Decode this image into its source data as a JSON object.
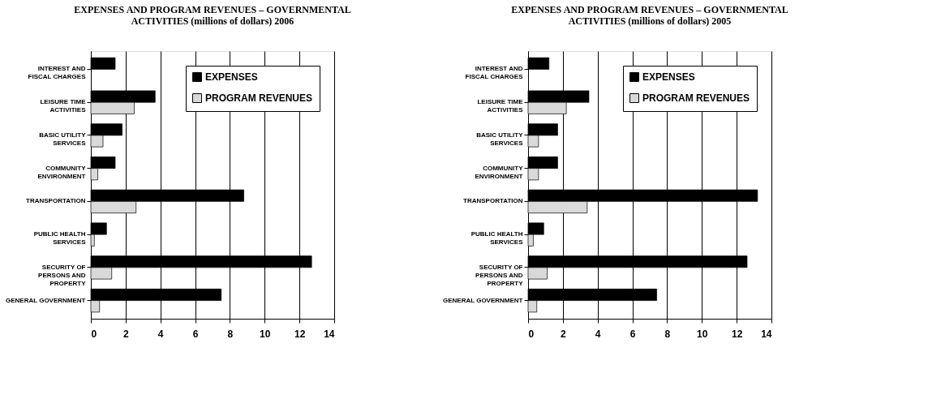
{
  "chart_data": [
    {
      "type": "bar",
      "orientation": "horizontal",
      "title": "EXPENSES AND PROGRAM REVENUES – GOVERNMENTAL ACTIVITIES (millions of dollars) 2006",
      "categories": [
        "INTEREST AND FISCAL CHARGES",
        "LEISURE TIME ACTIVITIES",
        "BASIC UTILITY SERVICES",
        "COMMUNITY ENVIRONMENT",
        "TRANSPORTATION",
        "PUBLIC HEALTH SERVICES",
        "SECURITY OF PERSONS AND PROPERTY",
        "GENERAL GOVERNMENT"
      ],
      "series": [
        {
          "name": "EXPENSES",
          "color": "#000000",
          "values": [
            1.4,
            3.7,
            1.8,
            1.4,
            8.8,
            0.9,
            12.7,
            7.5
          ]
        },
        {
          "name": "PROGRAM REVENUES",
          "color": "#d9d9d9",
          "values": [
            null,
            2.5,
            0.7,
            0.4,
            2.6,
            0.2,
            1.2,
            0.5
          ]
        }
      ],
      "xlim": [
        0,
        14
      ],
      "xticks": [
        0,
        2,
        4,
        6,
        8,
        10,
        12,
        14
      ],
      "grid": "x",
      "legend": "top right"
    },
    {
      "type": "bar",
      "orientation": "horizontal",
      "title": "EXPENSES AND PROGRAM REVENUES – GOVERNMENTAL ACTIVITIES (millions of dollars) 2005",
      "categories": [
        "INTEREST AND FISCAL CHARGES",
        "LEISURE TIME ACTIVITIES",
        "BASIC UTILITY SERVICES",
        "COMMUNITY ENVIRONMENT",
        "TRANSPORTATION",
        "PUBLIC HEALTH SERVICES",
        "SECURITY OF PERSONS AND PROPERTY",
        "GENERAL GOVERNMENT"
      ],
      "series": [
        {
          "name": "EXPENSES",
          "color": "#000000",
          "values": [
            1.2,
            3.5,
            1.7,
            1.7,
            13.2,
            0.9,
            12.6,
            7.4
          ]
        },
        {
          "name": "PROGRAM REVENUES",
          "color": "#d9d9d9",
          "values": [
            null,
            2.2,
            0.6,
            0.6,
            3.4,
            0.3,
            1.1,
            0.5
          ]
        }
      ],
      "xlim": [
        0,
        14
      ],
      "xticks": [
        0,
        2,
        4,
        6,
        8,
        10,
        12,
        14
      ],
      "grid": "x",
      "legend": "top right"
    }
  ]
}
